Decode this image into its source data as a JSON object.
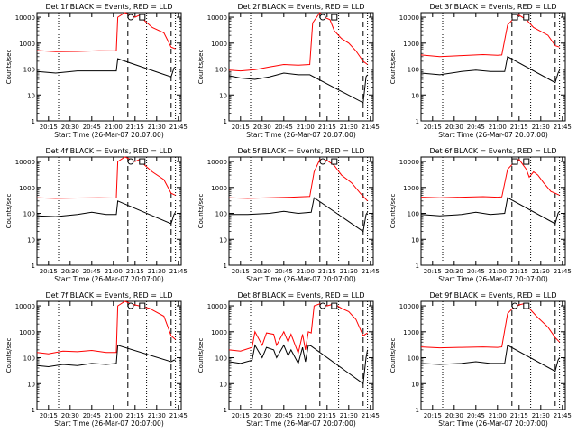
{
  "x_axis_label": "Start Time (26-Mar-07 20:07:00)",
  "y_axis_label": "Counts/sec",
  "x_tick_labels": [
    "20:15",
    "20:30",
    "20:45",
    "21:00",
    "21:15",
    "21:30",
    "21:45"
  ],
  "y_tick_labels": [
    "1",
    "10",
    "100",
    "1000",
    "10000"
  ],
  "colors": {
    "events": "#000000",
    "lld": "#ff0000"
  },
  "chart_data": [
    {
      "type": "line",
      "title": "Det 1f BLACK = Events, RED = LLD",
      "x_label": "Start Time (26-Mar-07 20:07:00)",
      "y_label": "Counts/sec",
      "x_range": [
        "20:07",
        "21:47"
      ],
      "y_range": [
        1,
        15000
      ],
      "y_scale": "log",
      "dashed_vlines": [
        "21:10",
        "21:40"
      ],
      "dotted_vlines": [
        "20:22",
        "21:23",
        "21:43"
      ],
      "markers": [
        {
          "shape": "circle",
          "x": "21:12",
          "y": 10000
        },
        {
          "shape": "square",
          "x": "21:20",
          "y": 10000
        }
      ],
      "series": [
        {
          "x": [
            "20:07",
            "20:20",
            "20:35",
            "20:50",
            "21:00",
            "21:02",
            "21:03",
            "21:08",
            "21:12",
            "21:15",
            "21:18",
            "21:22",
            "21:27",
            "21:35",
            "21:40",
            "21:43"
          ],
          "values": [
            520,
            470,
            480,
            510,
            500,
            510,
            10000,
            15000,
            12000,
            10000,
            12000,
            7000,
            4000,
            2500,
            700,
            600
          ]
        },
        {
          "x": [
            "20:07",
            "20:20",
            "20:35",
            "20:45",
            "20:55",
            "21:02",
            "21:03",
            "21:40",
            "21:42",
            "21:43"
          ],
          "values": [
            80,
            70,
            85,
            85,
            85,
            85,
            250,
            50,
            110,
            120
          ]
        }
      ]
    },
    {
      "type": "line",
      "title": "Det 2f BLACK = Events, RED = LLD",
      "x_label": "Start Time (26-Mar-07 20:07:00)",
      "y_label": "Counts/sec",
      "x_range": [
        "20:07",
        "21:47"
      ],
      "y_range": [
        1,
        15000
      ],
      "y_scale": "log",
      "dashed_vlines": [
        "21:10",
        "21:40"
      ],
      "dotted_vlines": [
        "20:22",
        "21:23",
        "21:43"
      ],
      "markers": [
        {
          "shape": "circle",
          "x": "21:12",
          "y": 10000
        },
        {
          "shape": "square",
          "x": "21:20",
          "y": 10000
        }
      ],
      "series": [
        {
          "x": [
            "20:07",
            "20:15",
            "20:25",
            "20:35",
            "20:45",
            "20:55",
            "21:03",
            "21:05",
            "21:10",
            "21:13",
            "21:17",
            "21:20",
            "21:25",
            "21:30",
            "21:35",
            "21:40",
            "21:43"
          ],
          "values": [
            90,
            85,
            95,
            120,
            150,
            140,
            150,
            6000,
            15000,
            10000,
            8000,
            3000,
            1500,
            1000,
            500,
            200,
            150
          ]
        },
        {
          "x": [
            "20:07",
            "20:15",
            "20:25",
            "20:35",
            "20:45",
            "20:55",
            "21:03",
            "21:40",
            "21:42",
            "21:43"
          ],
          "values": [
            55,
            45,
            40,
            50,
            70,
            60,
            60,
            5,
            50,
            60
          ]
        }
      ]
    },
    {
      "type": "line",
      "title": "Det 3f BLACK = Events, RED = LLD",
      "x_label": "Start Time (26-Mar-07 20:07:00)",
      "y_label": "Counts/sec",
      "x_range": [
        "20:07",
        "21:47"
      ],
      "y_range": [
        1,
        15000
      ],
      "y_scale": "log",
      "dashed_vlines": [
        "21:10",
        "21:40"
      ],
      "dotted_vlines": [
        "20:22",
        "21:23",
        "21:43"
      ],
      "markers": [
        {
          "shape": "square",
          "x": "21:12",
          "y": 10000
        },
        {
          "shape": "square",
          "x": "21:20",
          "y": 10000
        }
      ],
      "series": [
        {
          "x": [
            "20:07",
            "20:20",
            "20:35",
            "20:50",
            "21:00",
            "21:03",
            "21:07",
            "21:12",
            "21:15",
            "21:20",
            "21:25",
            "21:35",
            "21:40",
            "21:43"
          ],
          "values": [
            350,
            300,
            330,
            360,
            340,
            350,
            5000,
            10000,
            12000,
            8000,
            4000,
            2000,
            800,
            700
          ]
        },
        {
          "x": [
            "20:07",
            "20:20",
            "20:35",
            "20:45",
            "20:55",
            "21:05",
            "21:07",
            "21:40",
            "21:42",
            "21:43"
          ],
          "values": [
            70,
            60,
            80,
            90,
            80,
            80,
            300,
            30,
            70,
            90
          ]
        }
      ]
    },
    {
      "type": "line",
      "title": "Det 4f BLACK = Events, RED = LLD",
      "x_label": "Start Time (26-Mar-07 20:07:00)",
      "y_label": "Counts/sec",
      "x_range": [
        "20:07",
        "21:47"
      ],
      "y_range": [
        1,
        15000
      ],
      "y_scale": "log",
      "dashed_vlines": [
        "21:10",
        "21:40"
      ],
      "dotted_vlines": [
        "20:22",
        "21:23",
        "21:43"
      ],
      "markers": [
        {
          "shape": "circle",
          "x": "21:12",
          "y": 10000
        },
        {
          "shape": "square",
          "x": "21:20",
          "y": 10000
        }
      ],
      "series": [
        {
          "x": [
            "20:07",
            "20:20",
            "20:35",
            "20:50",
            "21:00",
            "21:02",
            "21:03",
            "21:08",
            "21:12",
            "21:15",
            "21:18",
            "21:22",
            "21:27",
            "21:35",
            "21:40",
            "21:43"
          ],
          "values": [
            400,
            380,
            390,
            400,
            390,
            390,
            10000,
            15000,
            12000,
            10000,
            12000,
            7000,
            4000,
            2000,
            600,
            500
          ]
        },
        {
          "x": [
            "20:07",
            "20:20",
            "20:35",
            "20:45",
            "20:55",
            "21:02",
            "21:03",
            "21:40",
            "21:42",
            "21:43"
          ],
          "values": [
            80,
            75,
            90,
            110,
            90,
            90,
            300,
            40,
            90,
            110
          ]
        }
      ]
    },
    {
      "type": "line",
      "title": "Det 5f BLACK = Events, RED = LLD",
      "x_label": "Start Time (26-Mar-07 20:07:00)",
      "y_label": "Counts/sec",
      "x_range": [
        "20:07",
        "21:47"
      ],
      "y_range": [
        1,
        15000
      ],
      "y_scale": "log",
      "dashed_vlines": [
        "21:10",
        "21:40"
      ],
      "dotted_vlines": [
        "20:22",
        "21:23",
        "21:43"
      ],
      "markers": [
        {
          "shape": "circle",
          "x": "21:12",
          "y": 10000
        },
        {
          "shape": "square",
          "x": "21:20",
          "y": 10000
        }
      ],
      "series": [
        {
          "x": [
            "20:07",
            "20:20",
            "20:35",
            "20:50",
            "21:03",
            "21:06",
            "21:10",
            "21:15",
            "21:20",
            "21:25",
            "21:32",
            "21:38",
            "21:43"
          ],
          "values": [
            400,
            380,
            400,
            420,
            450,
            4000,
            12000,
            11000,
            7000,
            3000,
            1500,
            600,
            300
          ]
        },
        {
          "x": [
            "20:07",
            "20:20",
            "20:35",
            "20:45",
            "20:55",
            "21:04",
            "21:06",
            "21:40",
            "21:42",
            "21:43"
          ],
          "values": [
            90,
            90,
            100,
            120,
            100,
            110,
            400,
            20,
            90,
            110
          ]
        }
      ]
    },
    {
      "type": "line",
      "title": "Det 6f BLACK = Events, RED = LLD",
      "x_label": "Start Time (26-Mar-07 20:07:00)",
      "y_label": "Counts/sec",
      "x_range": [
        "20:07",
        "21:47"
      ],
      "y_range": [
        1,
        15000
      ],
      "y_scale": "log",
      "dashed_vlines": [
        "21:10",
        "21:40"
      ],
      "dotted_vlines": [
        "20:22",
        "21:23",
        "21:43"
      ],
      "markers": [
        {
          "shape": "square",
          "x": "21:12",
          "y": 10000
        },
        {
          "shape": "square",
          "x": "21:20",
          "y": 10000
        }
      ],
      "series": [
        {
          "x": [
            "20:07",
            "20:20",
            "20:35",
            "20:50",
            "21:00",
            "21:03",
            "21:07",
            "21:12",
            "21:15",
            "21:20",
            "21:22",
            "21:25",
            "21:28",
            "21:32",
            "21:37",
            "21:40",
            "21:43"
          ],
          "values": [
            420,
            400,
            420,
            440,
            420,
            430,
            5000,
            10000,
            12000,
            5000,
            2500,
            4000,
            3000,
            1500,
            700,
            600,
            500
          ]
        },
        {
          "x": [
            "20:07",
            "20:20",
            "20:35",
            "20:45",
            "20:55",
            "21:05",
            "21:07",
            "21:40",
            "21:42",
            "21:43"
          ],
          "values": [
            90,
            80,
            90,
            110,
            90,
            100,
            400,
            40,
            100,
            120
          ]
        }
      ]
    },
    {
      "type": "line",
      "title": "Det 7f BLACK = Events, RED = LLD",
      "x_label": "Start Time (26-Mar-07 20:07:00)",
      "y_label": "Counts/sec",
      "x_range": [
        "20:07",
        "21:47"
      ],
      "y_range": [
        1,
        15000
      ],
      "y_scale": "log",
      "dashed_vlines": [
        "21:10",
        "21:40"
      ],
      "dotted_vlines": [
        "20:22",
        "21:23",
        "21:43"
      ],
      "markers": [
        {
          "shape": "circle",
          "x": "21:12",
          "y": 10000
        },
        {
          "shape": "square",
          "x": "21:20",
          "y": 10000
        }
      ],
      "series": [
        {
          "x": [
            "20:07",
            "20:15",
            "20:25",
            "20:35",
            "20:45",
            "20:55",
            "21:02",
            "21:03",
            "21:08",
            "21:12",
            "21:18",
            "21:25",
            "21:35",
            "21:40",
            "21:43"
          ],
          "values": [
            160,
            140,
            180,
            170,
            190,
            160,
            160,
            10000,
            15000,
            12000,
            10000,
            8000,
            4000,
            700,
            500
          ]
        },
        {
          "x": [
            "20:07",
            "20:15",
            "20:25",
            "20:35",
            "20:45",
            "20:55",
            "21:02",
            "21:03",
            "21:40",
            "21:42",
            "21:43"
          ],
          "values": [
            50,
            45,
            55,
            50,
            60,
            55,
            60,
            300,
            70,
            80,
            80
          ]
        }
      ]
    },
    {
      "type": "line",
      "title": "Det 8f BLACK = Events, RED = LLD",
      "x_label": "Start Time (26-Mar-07 20:07:00)",
      "y_label": "Counts/sec",
      "x_range": [
        "20:07",
        "21:47"
      ],
      "y_range": [
        1,
        15000
      ],
      "y_scale": "log",
      "dashed_vlines": [
        "21:10",
        "21:40"
      ],
      "dotted_vlines": [
        "20:22",
        "21:23",
        "21:43"
      ],
      "markers": [
        {
          "shape": "circle",
          "x": "21:12",
          "y": 10000
        },
        {
          "shape": "square",
          "x": "21:20",
          "y": 10000
        }
      ],
      "series": [
        {
          "x": [
            "20:07",
            "20:15",
            "20:23",
            "20:25",
            "20:30",
            "20:33",
            "20:38",
            "20:40",
            "20:45",
            "20:48",
            "20:50",
            "20:55",
            "20:58",
            "21:00",
            "21:02",
            "21:04",
            "21:06",
            "21:10",
            "21:15",
            "21:20",
            "21:25",
            "21:30",
            "21:35",
            "21:40",
            "21:43"
          ],
          "values": [
            200,
            180,
            250,
            1000,
            300,
            900,
            800,
            300,
            1000,
            400,
            800,
            150,
            800,
            200,
            1000,
            900,
            10000,
            12000,
            10000,
            12000,
            8000,
            6000,
            3000,
            700,
            900
          ]
        },
        {
          "x": [
            "20:07",
            "20:15",
            "20:23",
            "20:25",
            "20:30",
            "20:33",
            "20:38",
            "20:40",
            "20:45",
            "20:48",
            "20:50",
            "20:55",
            "20:58",
            "21:00",
            "21:02",
            "21:04",
            "21:40",
            "21:42",
            "21:43"
          ],
          "values": [
            70,
            60,
            80,
            300,
            100,
            250,
            200,
            100,
            300,
            120,
            200,
            60,
            250,
            70,
            300,
            280,
            10,
            100,
            200
          ]
        }
      ]
    },
    {
      "type": "line",
      "title": "Det 9f BLACK = Events, RED = LLD",
      "x_label": "Start Time (26-Mar-07 20:07:00)",
      "y_label": "Counts/sec",
      "x_range": [
        "20:07",
        "21:47"
      ],
      "y_range": [
        1,
        15000
      ],
      "y_scale": "log",
      "dashed_vlines": [
        "21:10",
        "21:40"
      ],
      "dotted_vlines": [
        "20:22",
        "21:23",
        "21:43"
      ],
      "markers": [
        {
          "shape": "circle",
          "x": "21:12",
          "y": 10000
        },
        {
          "shape": "square",
          "x": "21:20",
          "y": 10000
        }
      ],
      "series": [
        {
          "x": [
            "20:07",
            "20:20",
            "20:35",
            "20:50",
            "21:00",
            "21:03",
            "21:07",
            "21:12",
            "21:18",
            "21:22",
            "21:27",
            "21:35",
            "21:40",
            "21:43"
          ],
          "values": [
            260,
            240,
            250,
            260,
            250,
            260,
            5000,
            10000,
            12000,
            8000,
            4000,
            1500,
            600,
            400
          ]
        },
        {
          "x": [
            "20:07",
            "20:20",
            "20:35",
            "20:45",
            "20:55",
            "21:05",
            "21:07",
            "21:40",
            "21:42",
            "21:43"
          ],
          "values": [
            60,
            55,
            60,
            70,
            60,
            60,
            300,
            30,
            80,
            100
          ]
        }
      ]
    }
  ]
}
